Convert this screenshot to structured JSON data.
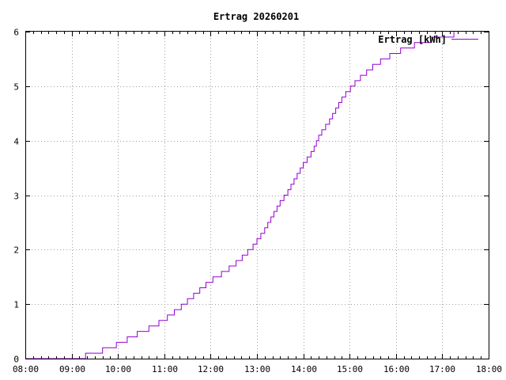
{
  "chart_data": {
    "type": "line",
    "title": "Ertrag 20260201",
    "xlabel": "",
    "ylabel": "",
    "xlim": [
      "08:00",
      "18:00"
    ],
    "ylim": [
      0,
      6
    ],
    "x_ticks": [
      "08:00",
      "09:00",
      "10:00",
      "11:00",
      "12:00",
      "13:00",
      "14:00",
      "15:00",
      "16:00",
      "17:00",
      "18:00"
    ],
    "y_ticks": [
      "0",
      "1",
      "2",
      "3",
      "4",
      "5",
      "6"
    ],
    "grid": true,
    "legend_position": "top-right",
    "series": [
      {
        "name": "Ertrag [kWh]",
        "color": "#9400d3",
        "step": true,
        "points": [
          [
            "08:00",
            0.0
          ],
          [
            "09:18",
            0.0
          ],
          [
            "09:18",
            0.1
          ],
          [
            "09:40",
            0.1
          ],
          [
            "09:40",
            0.2
          ],
          [
            "09:58",
            0.2
          ],
          [
            "09:58",
            0.3
          ],
          [
            "10:12",
            0.3
          ],
          [
            "10:12",
            0.4
          ],
          [
            "10:25",
            0.4
          ],
          [
            "10:25",
            0.5
          ],
          [
            "10:40",
            0.5
          ],
          [
            "10:40",
            0.6
          ],
          [
            "10:53",
            0.6
          ],
          [
            "10:53",
            0.7
          ],
          [
            "11:04",
            0.7
          ],
          [
            "11:04",
            0.8
          ],
          [
            "11:13",
            0.8
          ],
          [
            "11:13",
            0.9
          ],
          [
            "11:22",
            0.9
          ],
          [
            "11:22",
            1.0
          ],
          [
            "11:30",
            1.0
          ],
          [
            "11:30",
            1.1
          ],
          [
            "11:38",
            1.1
          ],
          [
            "11:38",
            1.2
          ],
          [
            "11:46",
            1.2
          ],
          [
            "11:46",
            1.3
          ],
          [
            "11:54",
            1.3
          ],
          [
            "11:54",
            1.4
          ],
          [
            "12:03",
            1.4
          ],
          [
            "12:03",
            1.5
          ],
          [
            "12:14",
            1.5
          ],
          [
            "12:14",
            1.6
          ],
          [
            "12:24",
            1.6
          ],
          [
            "12:24",
            1.7
          ],
          [
            "12:33",
            1.7
          ],
          [
            "12:33",
            1.8
          ],
          [
            "12:41",
            1.8
          ],
          [
            "12:41",
            1.9
          ],
          [
            "12:48",
            1.9
          ],
          [
            "12:48",
            2.0
          ],
          [
            "12:55",
            2.0
          ],
          [
            "12:55",
            2.1
          ],
          [
            "13:00",
            2.1
          ],
          [
            "13:00",
            2.2
          ],
          [
            "13:05",
            2.2
          ],
          [
            "13:05",
            2.3
          ],
          [
            "13:10",
            2.3
          ],
          [
            "13:10",
            2.4
          ],
          [
            "13:14",
            2.4
          ],
          [
            "13:14",
            2.5
          ],
          [
            "13:18",
            2.5
          ],
          [
            "13:18",
            2.6
          ],
          [
            "13:22",
            2.6
          ],
          [
            "13:22",
            2.7
          ],
          [
            "13:26",
            2.7
          ],
          [
            "13:26",
            2.8
          ],
          [
            "13:30",
            2.8
          ],
          [
            "13:30",
            2.9
          ],
          [
            "13:35",
            2.9
          ],
          [
            "13:35",
            3.0
          ],
          [
            "13:40",
            3.0
          ],
          [
            "13:40",
            3.1
          ],
          [
            "13:44",
            3.1
          ],
          [
            "13:44",
            3.2
          ],
          [
            "13:48",
            3.2
          ],
          [
            "13:48",
            3.3
          ],
          [
            "13:52",
            3.3
          ],
          [
            "13:52",
            3.4
          ],
          [
            "13:56",
            3.4
          ],
          [
            "13:56",
            3.5
          ],
          [
            "14:00",
            3.5
          ],
          [
            "14:00",
            3.6
          ],
          [
            "14:05",
            3.6
          ],
          [
            "14:05",
            3.7
          ],
          [
            "14:10",
            3.7
          ],
          [
            "14:10",
            3.8
          ],
          [
            "14:14",
            3.8
          ],
          [
            "14:14",
            3.9
          ],
          [
            "14:17",
            3.9
          ],
          [
            "14:17",
            4.0
          ],
          [
            "14:20",
            4.0
          ],
          [
            "14:20",
            4.1
          ],
          [
            "14:24",
            4.1
          ],
          [
            "14:24",
            4.2
          ],
          [
            "14:29",
            4.2
          ],
          [
            "14:29",
            4.3
          ],
          [
            "14:34",
            4.3
          ],
          [
            "14:34",
            4.4
          ],
          [
            "14:38",
            4.4
          ],
          [
            "14:38",
            4.5
          ],
          [
            "14:42",
            4.5
          ],
          [
            "14:42",
            4.6
          ],
          [
            "14:46",
            4.6
          ],
          [
            "14:46",
            4.7
          ],
          [
            "14:50",
            4.7
          ],
          [
            "14:50",
            4.8
          ],
          [
            "14:55",
            4.8
          ],
          [
            "14:55",
            4.9
          ],
          [
            "15:01",
            4.9
          ],
          [
            "15:01",
            5.0
          ],
          [
            "15:07",
            5.0
          ],
          [
            "15:07",
            5.1
          ],
          [
            "15:14",
            5.1
          ],
          [
            "15:14",
            5.2
          ],
          [
            "15:22",
            5.2
          ],
          [
            "15:22",
            5.3
          ],
          [
            "15:30",
            5.3
          ],
          [
            "15:30",
            5.4
          ],
          [
            "15:40",
            5.4
          ],
          [
            "15:40",
            5.5
          ],
          [
            "15:52",
            5.5
          ],
          [
            "15:52",
            5.6
          ],
          [
            "16:06",
            5.6
          ],
          [
            "16:06",
            5.7
          ],
          [
            "16:24",
            5.7
          ],
          [
            "16:24",
            5.8
          ],
          [
            "16:45",
            5.8
          ],
          [
            "16:45",
            5.9
          ],
          [
            "17:15",
            5.9
          ],
          [
            "17:15",
            6.0
          ]
        ]
      }
    ]
  }
}
